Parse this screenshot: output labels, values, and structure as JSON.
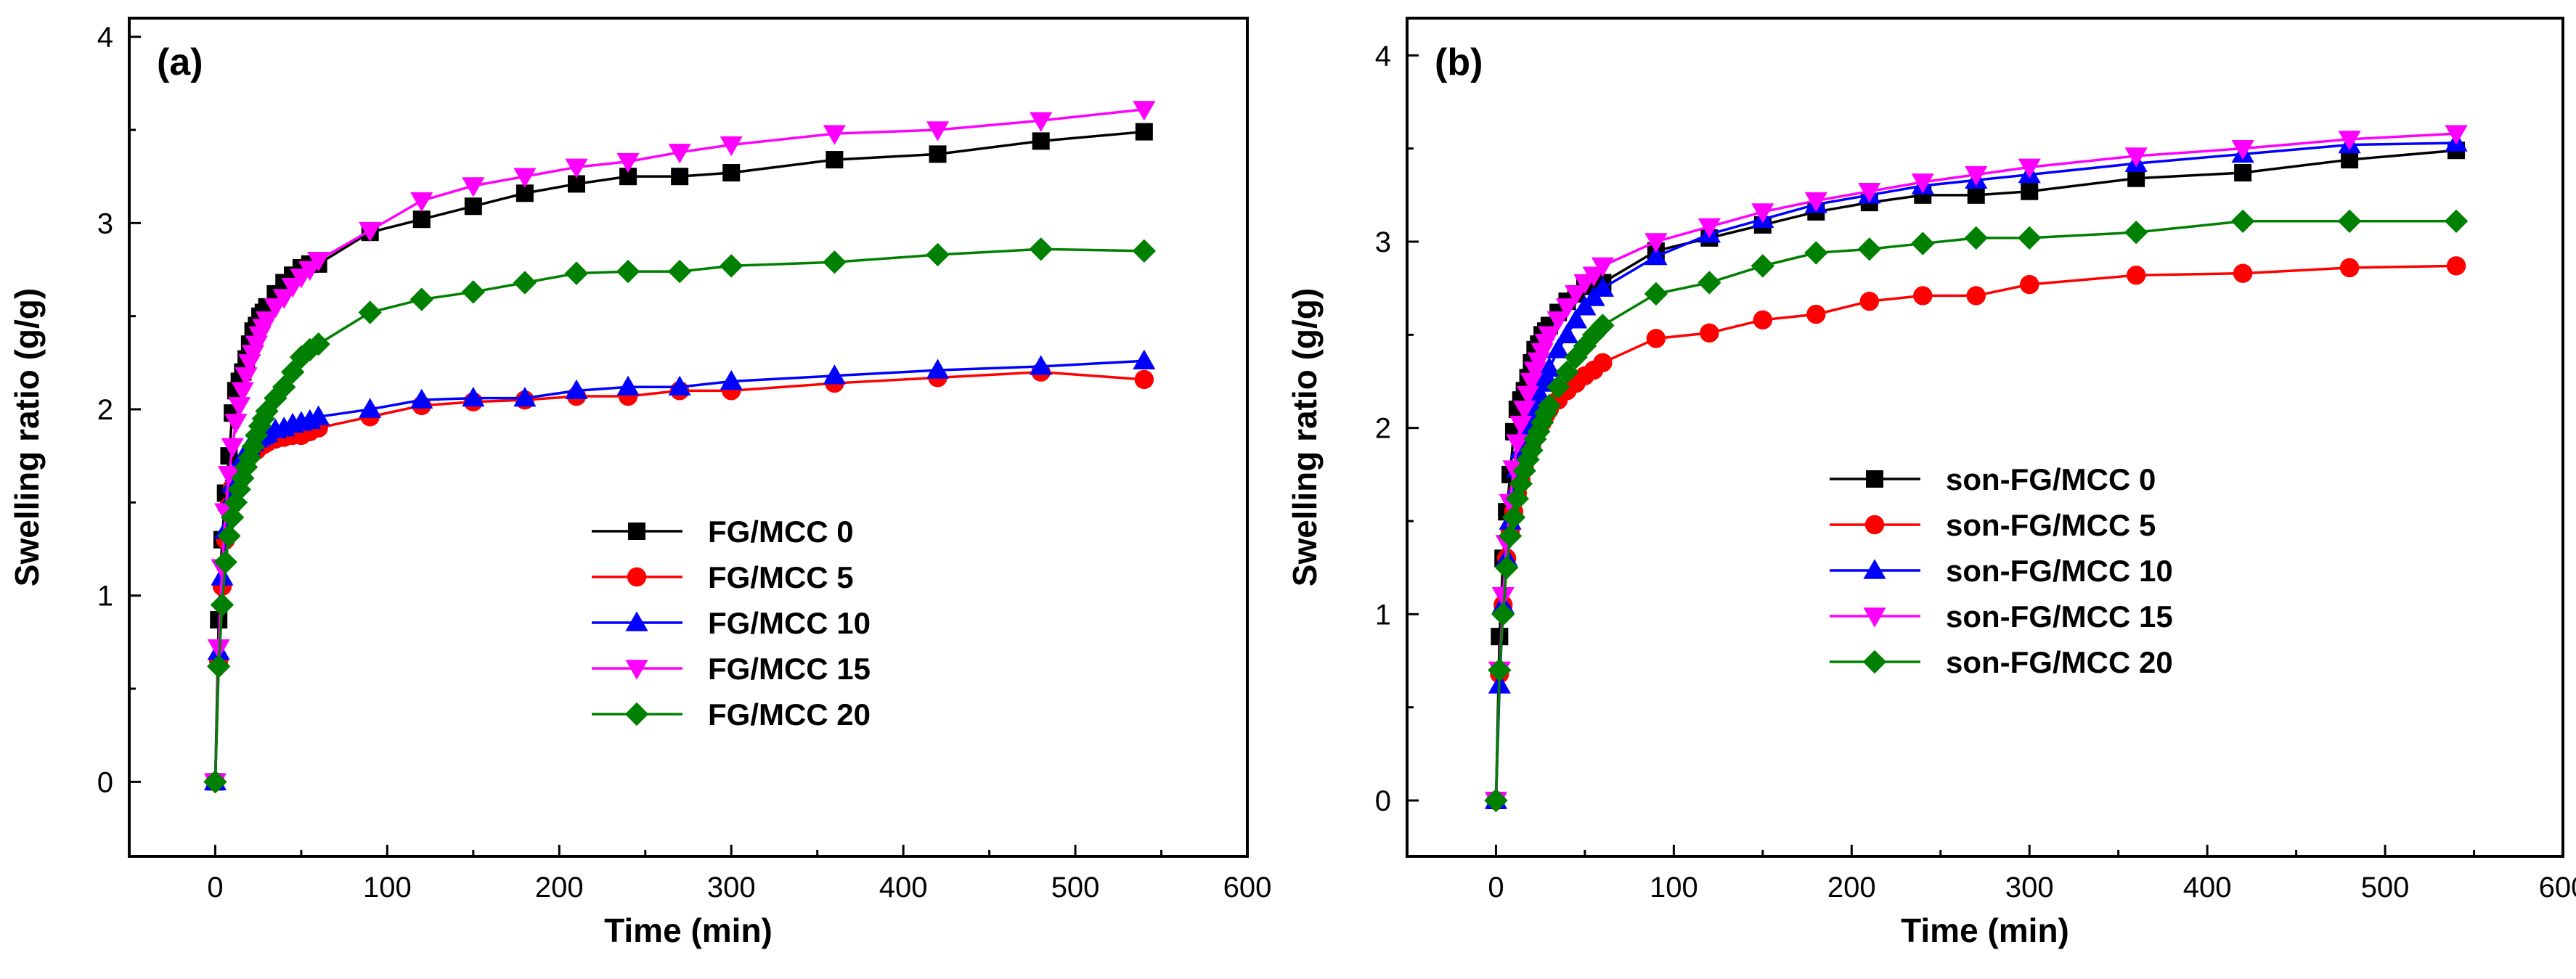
{
  "chart_data": [
    {
      "panel_label": "(a)",
      "type": "line",
      "xlabel": "Time (min)",
      "ylabel": "Swelling ratio (g/g)",
      "xlim": [
        -50,
        600
      ],
      "ylim": [
        -0.4,
        4.1
      ],
      "xticks": [
        0,
        100,
        200,
        300,
        400,
        500,
        600
      ],
      "yticks": [
        0,
        1,
        2,
        3,
        4
      ],
      "legend_position": "center-right",
      "series": [
        {
          "name": "FG/MCC 0",
          "color": "#000000",
          "marker": "square",
          "x": [
            0,
            2,
            4,
            6,
            8,
            10,
            12,
            14,
            16,
            18,
            20,
            22,
            24,
            26,
            28,
            30,
            35,
            40,
            45,
            50,
            55,
            60,
            90,
            120,
            150,
            180,
            210,
            240,
            270,
            300,
            360,
            420,
            480,
            540
          ],
          "y": [
            0,
            0.87,
            1.3,
            1.55,
            1.75,
            1.98,
            2.1,
            2.15,
            2.2,
            2.27,
            2.35,
            2.42,
            2.45,
            2.5,
            2.52,
            2.55,
            2.62,
            2.68,
            2.72,
            2.76,
            2.78,
            2.78,
            2.95,
            3.02,
            3.09,
            3.16,
            3.21,
            3.25,
            3.25,
            3.27,
            3.34,
            3.37,
            3.44,
            3.49
          ]
        },
        {
          "name": "FG/MCC 5",
          "color": "#ff0000",
          "marker": "circle",
          "x": [
            0,
            2,
            4,
            6,
            8,
            10,
            12,
            14,
            16,
            18,
            20,
            22,
            24,
            26,
            28,
            30,
            35,
            40,
            45,
            50,
            55,
            60,
            90,
            120,
            150,
            180,
            210,
            240,
            270,
            300,
            360,
            420,
            480,
            540
          ],
          "y": [
            0,
            0.65,
            1.05,
            1.3,
            1.48,
            1.58,
            1.62,
            1.66,
            1.7,
            1.72,
            1.75,
            1.77,
            1.78,
            1.8,
            1.81,
            1.82,
            1.84,
            1.85,
            1.86,
            1.86,
            1.88,
            1.9,
            1.96,
            2.02,
            2.04,
            2.05,
            2.07,
            2.07,
            2.1,
            2.1,
            2.14,
            2.17,
            2.2,
            2.16
          ]
        },
        {
          "name": "FG/MCC 10",
          "color": "#0000ff",
          "marker": "triangle-up",
          "x": [
            0,
            2,
            4,
            6,
            8,
            10,
            12,
            14,
            16,
            18,
            20,
            22,
            24,
            26,
            28,
            30,
            35,
            40,
            45,
            50,
            55,
            60,
            90,
            120,
            150,
            180,
            210,
            240,
            270,
            300,
            360,
            420,
            480,
            540
          ],
          "y": [
            0,
            0.7,
            1.1,
            1.35,
            1.5,
            1.6,
            1.66,
            1.7,
            1.74,
            1.77,
            1.8,
            1.82,
            1.84,
            1.85,
            1.86,
            1.87,
            1.89,
            1.9,
            1.92,
            1.93,
            1.94,
            1.96,
            2.0,
            2.05,
            2.06,
            2.06,
            2.1,
            2.12,
            2.12,
            2.15,
            2.18,
            2.21,
            2.23,
            2.26
          ]
        },
        {
          "name": "FG/MCC 15",
          "color": "#ff00ff",
          "marker": "triangle-down",
          "x": [
            0,
            2,
            4,
            6,
            8,
            10,
            12,
            14,
            16,
            18,
            20,
            22,
            24,
            26,
            28,
            30,
            35,
            40,
            45,
            50,
            55,
            60,
            90,
            120,
            150,
            180,
            210,
            240,
            270,
            300,
            360,
            420,
            480,
            540
          ],
          "y": [
            0,
            0.72,
            1.15,
            1.45,
            1.65,
            1.8,
            1.93,
            2.02,
            2.1,
            2.18,
            2.25,
            2.3,
            2.35,
            2.4,
            2.44,
            2.48,
            2.55,
            2.6,
            2.66,
            2.71,
            2.75,
            2.8,
            2.96,
            3.12,
            3.2,
            3.25,
            3.3,
            3.33,
            3.38,
            3.42,
            3.48,
            3.5,
            3.55,
            3.61
          ]
        },
        {
          "name": "FG/MCC 20",
          "color": "#008000",
          "marker": "diamond",
          "x": [
            0,
            2,
            4,
            6,
            8,
            10,
            12,
            14,
            16,
            18,
            20,
            22,
            24,
            26,
            28,
            30,
            35,
            40,
            45,
            50,
            55,
            60,
            90,
            120,
            150,
            180,
            210,
            240,
            270,
            300,
            360,
            420,
            480,
            540
          ],
          "y": [
            0,
            0.62,
            0.95,
            1.18,
            1.32,
            1.42,
            1.5,
            1.57,
            1.63,
            1.69,
            1.74,
            1.8,
            1.86,
            1.91,
            1.95,
            1.99,
            2.06,
            2.12,
            2.2,
            2.28,
            2.32,
            2.35,
            2.52,
            2.59,
            2.63,
            2.68,
            2.73,
            2.74,
            2.74,
            2.77,
            2.79,
            2.83,
            2.86,
            2.85
          ]
        }
      ]
    },
    {
      "panel_label": "(b)",
      "type": "line",
      "xlabel": "Time (min)",
      "ylabel": "Swelling ratio (g/g)",
      "xlim": [
        -50,
        600
      ],
      "ylim": [
        -0.3,
        4.2
      ],
      "xticks": [
        0,
        100,
        200,
        300,
        400,
        500,
        600
      ],
      "yticks": [
        0,
        1,
        2,
        3,
        4
      ],
      "legend_position": "center-right",
      "series": [
        {
          "name": "son-FG/MCC  0",
          "color": "#000000",
          "marker": "square",
          "x": [
            0,
            2,
            4,
            6,
            8,
            10,
            12,
            14,
            16,
            18,
            20,
            22,
            24,
            26,
            28,
            30,
            35,
            40,
            45,
            50,
            55,
            60,
            90,
            120,
            150,
            180,
            210,
            240,
            270,
            300,
            360,
            420,
            480,
            540
          ],
          "y": [
            0,
            0.88,
            1.3,
            1.55,
            1.75,
            1.98,
            2.1,
            2.15,
            2.2,
            2.27,
            2.35,
            2.42,
            2.45,
            2.5,
            2.52,
            2.55,
            2.62,
            2.68,
            2.72,
            2.76,
            2.78,
            2.78,
            2.95,
            3.02,
            3.09,
            3.16,
            3.21,
            3.25,
            3.25,
            3.27,
            3.34,
            3.37,
            3.44,
            3.49
          ]
        },
        {
          "name": "son-FG/MCC  5",
          "color": "#ff0000",
          "marker": "circle",
          "x": [
            0,
            2,
            4,
            6,
            8,
            10,
            12,
            14,
            16,
            18,
            20,
            22,
            24,
            26,
            28,
            30,
            35,
            40,
            45,
            50,
            55,
            60,
            90,
            120,
            150,
            180,
            210,
            240,
            270,
            300,
            360,
            420,
            480,
            540
          ],
          "y": [
            0,
            0.68,
            1.05,
            1.3,
            1.45,
            1.55,
            1.65,
            1.72,
            1.78,
            1.84,
            1.9,
            1.95,
            2.0,
            2.03,
            2.07,
            2.1,
            2.15,
            2.2,
            2.24,
            2.28,
            2.31,
            2.35,
            2.48,
            2.51,
            2.58,
            2.61,
            2.68,
            2.71,
            2.71,
            2.77,
            2.82,
            2.83,
            2.86,
            2.87
          ]
        },
        {
          "name": "son-FG/MCC  10",
          "color": "#0000ff",
          "marker": "triangle-up",
          "x": [
            0,
            2,
            4,
            6,
            8,
            10,
            12,
            14,
            16,
            18,
            20,
            22,
            24,
            26,
            28,
            30,
            35,
            40,
            45,
            50,
            55,
            60,
            90,
            120,
            150,
            180,
            210,
            240,
            270,
            300,
            360,
            420,
            480,
            540
          ],
          "y": [
            0,
            0.62,
            1.05,
            1.3,
            1.5,
            1.65,
            1.78,
            1.88,
            1.96,
            2.02,
            2.08,
            2.14,
            2.19,
            2.24,
            2.28,
            2.32,
            2.42,
            2.5,
            2.58,
            2.65,
            2.7,
            2.75,
            2.92,
            3.04,
            3.12,
            3.2,
            3.25,
            3.3,
            3.33,
            3.36,
            3.42,
            3.47,
            3.52,
            3.53
          ]
        },
        {
          "name": "son-FG/MCC  15",
          "color": "#ff00ff",
          "marker": "triangle-down",
          "x": [
            0,
            2,
            4,
            6,
            8,
            10,
            12,
            14,
            16,
            18,
            20,
            22,
            24,
            26,
            28,
            30,
            35,
            40,
            45,
            50,
            55,
            60,
            90,
            120,
            150,
            180,
            210,
            240,
            270,
            300,
            360,
            420,
            480,
            540
          ],
          "y": [
            0,
            0.7,
            1.1,
            1.38,
            1.6,
            1.78,
            1.92,
            2.02,
            2.1,
            2.18,
            2.25,
            2.31,
            2.36,
            2.41,
            2.46,
            2.5,
            2.58,
            2.65,
            2.72,
            2.78,
            2.82,
            2.87,
            3.0,
            3.08,
            3.16,
            3.22,
            3.27,
            3.32,
            3.36,
            3.4,
            3.46,
            3.5,
            3.55,
            3.58
          ]
        },
        {
          "name": "son-FG/MCC  20",
          "color": "#008000",
          "marker": "diamond",
          "x": [
            0,
            2,
            4,
            6,
            8,
            10,
            12,
            14,
            16,
            18,
            20,
            22,
            24,
            26,
            28,
            30,
            35,
            40,
            45,
            50,
            55,
            60,
            90,
            120,
            150,
            180,
            210,
            240,
            270,
            300,
            360,
            420,
            480,
            540
          ],
          "y": [
            0,
            0.7,
            1.0,
            1.25,
            1.42,
            1.52,
            1.62,
            1.7,
            1.77,
            1.83,
            1.88,
            1.94,
            1.98,
            2.03,
            2.08,
            2.12,
            2.22,
            2.3,
            2.38,
            2.44,
            2.5,
            2.55,
            2.72,
            2.78,
            2.87,
            2.94,
            2.96,
            2.99,
            3.02,
            3.02,
            3.05,
            3.11,
            3.11,
            3.11
          ]
        }
      ]
    }
  ]
}
